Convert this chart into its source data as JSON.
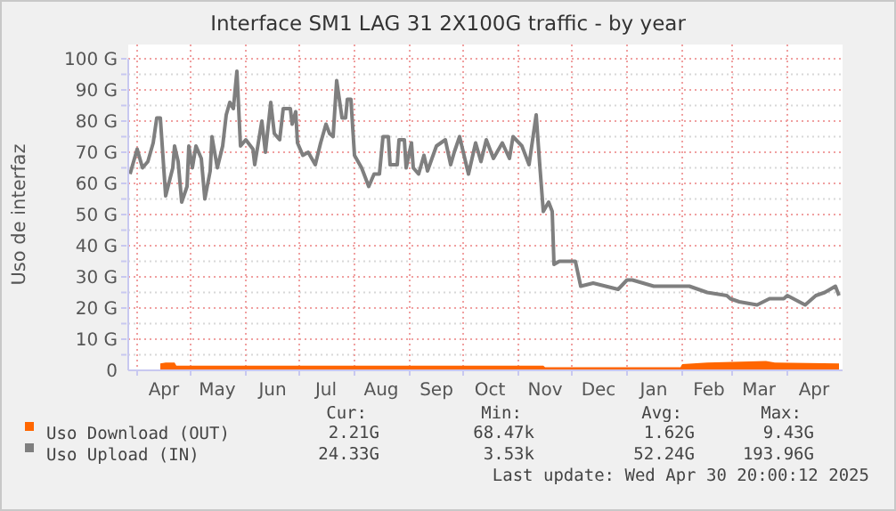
{
  "chart_data": {
    "type": "line",
    "title": "Interface SM1 LAG 31 2X100G traffic - by year",
    "ylabel": "Uso de interfaz",
    "xlim": [
      "2024-03-27",
      "2025-05-02"
    ],
    "xticks": [
      {
        "value": "2024-04-01",
        "label": null
      },
      {
        "value": "2024-04-16",
        "label": "Apr"
      },
      {
        "value": "2024-05-01",
        "label": null
      },
      {
        "value": "2024-05-16",
        "label": "May"
      },
      {
        "value": "2024-06-01",
        "label": null
      },
      {
        "value": "2024-06-16",
        "label": "Jun"
      },
      {
        "value": "2024-07-01",
        "label": null
      },
      {
        "value": "2024-07-16",
        "label": "Jul"
      },
      {
        "value": "2024-08-01",
        "label": null
      },
      {
        "value": "2024-08-16",
        "label": "Aug"
      },
      {
        "value": "2024-09-01",
        "label": null
      },
      {
        "value": "2024-09-16",
        "label": "Sep"
      },
      {
        "value": "2024-10-01",
        "label": null
      },
      {
        "value": "2024-10-16",
        "label": "Oct"
      },
      {
        "value": "2024-11-01",
        "label": null
      },
      {
        "value": "2024-11-16",
        "label": "Nov"
      },
      {
        "value": "2024-12-01",
        "label": null
      },
      {
        "value": "2024-12-16",
        "label": "Dec"
      },
      {
        "value": "2025-01-01",
        "label": null
      },
      {
        "value": "2025-01-16",
        "label": "Jan"
      },
      {
        "value": "2025-02-01",
        "label": null
      },
      {
        "value": "2025-02-16",
        "label": "Feb"
      },
      {
        "value": "2025-03-01",
        "label": null
      },
      {
        "value": "2025-03-16",
        "label": "Mar"
      },
      {
        "value": "2025-04-01",
        "label": null
      },
      {
        "value": "2025-04-16",
        "label": "Apr"
      }
    ],
    "ylim": [
      0,
      100
    ],
    "yticks": [
      0,
      {
        "value": 5,
        "label": null
      },
      {
        "value": 10,
        "label": "10 G"
      },
      {
        "value": 15,
        "label": null
      },
      {
        "value": 20,
        "label": "20 G"
      },
      {
        "value": 25,
        "label": null
      },
      {
        "value": 30,
        "label": "30 G"
      },
      {
        "value": 35,
        "label": null
      },
      {
        "value": 40,
        "label": "40 G"
      },
      {
        "value": 45,
        "label": null
      },
      {
        "value": 50,
        "label": "50 G"
      },
      {
        "value": 55,
        "label": null
      },
      {
        "value": 60,
        "label": "60 G"
      },
      {
        "value": 65,
        "label": null
      },
      {
        "value": 70,
        "label": "70 G"
      },
      {
        "value": 75,
        "label": null
      },
      {
        "value": 80,
        "label": "80 G"
      },
      {
        "value": 85,
        "label": null
      },
      {
        "value": 90,
        "label": "90 G"
      },
      {
        "value": 95,
        "label": null
      },
      {
        "value": 100,
        "label": "100 G"
      }
    ],
    "grid": true,
    "legend": "bottom",
    "series": [
      {
        "name": "Uso Download (OUT)",
        "type": "area",
        "color": "#ff6600",
        "x": [
          "2024-04-14",
          "2024-04-17",
          "2024-04-22",
          "2024-04-23",
          "2024-11-15",
          "2024-11-16",
          "2025-01-31",
          "2025-02-01",
          "2025-02-15",
          "2025-03-20",
          "2025-03-25",
          "2025-04-30"
        ],
        "values": [
          2.2,
          2.5,
          2.5,
          1.5,
          1.5,
          1.0,
          1.0,
          2.0,
          2.5,
          3.0,
          2.5,
          2.2
        ]
      },
      {
        "name": "Uso Upload (IN)",
        "type": "line",
        "color": "#7f7f7f",
        "x": [
          "2024-03-28",
          "2024-04-01",
          "2024-04-04",
          "2024-04-07",
          "2024-04-10",
          "2024-04-12",
          "2024-04-14",
          "2024-04-17",
          "2024-04-21",
          "2024-04-22",
          "2024-04-24",
          "2024-04-26",
          "2024-04-29",
          "2024-04-30",
          "2024-05-02",
          "2024-05-04",
          "2024-05-07",
          "2024-05-09",
          "2024-05-12",
          "2024-05-13",
          "2024-05-16",
          "2024-05-19",
          "2024-05-21",
          "2024-05-23",
          "2024-05-25",
          "2024-05-27",
          "2024-05-29",
          "2024-06-01",
          "2024-06-05",
          "2024-06-06",
          "2024-06-10",
          "2024-06-12",
          "2024-06-15",
          "2024-06-17",
          "2024-06-20",
          "2024-06-22",
          "2024-06-26",
          "2024-06-27",
          "2024-06-29",
          "2024-06-30",
          "2024-07-03",
          "2024-07-06",
          "2024-07-10",
          "2024-07-13",
          "2024-07-16",
          "2024-07-18",
          "2024-07-20",
          "2024-07-22",
          "2024-07-25",
          "2024-07-27",
          "2024-07-28",
          "2024-07-30",
          "2024-08-01",
          "2024-08-05",
          "2024-08-09",
          "2024-08-12",
          "2024-08-15",
          "2024-08-17",
          "2024-08-20",
          "2024-08-21",
          "2024-08-25",
          "2024-08-26",
          "2024-08-29",
          "2024-08-30",
          "2024-09-02",
          "2024-09-03",
          "2024-09-06",
          "2024-09-09",
          "2024-09-11",
          "2024-09-16",
          "2024-09-21",
          "2024-09-24",
          "2024-09-26",
          "2024-09-29",
          "2024-10-04",
          "2024-10-08",
          "2024-10-11",
          "2024-10-14",
          "2024-10-18",
          "2024-10-23",
          "2024-10-27",
          "2024-10-29",
          "2024-11-03",
          "2024-11-07",
          "2024-11-11",
          "2024-11-13",
          "2024-11-15",
          "2024-11-18",
          "2024-11-20",
          "2024-11-21",
          "2024-11-24",
          "2024-11-27",
          "2024-12-03",
          "2024-12-06",
          "2024-12-13",
          "2024-12-27",
          "2025-01-01",
          "2025-01-04",
          "2025-01-16",
          "2025-01-26",
          "2025-02-05",
          "2025-02-15",
          "2025-02-26",
          "2025-02-28",
          "2025-03-05",
          "2025-03-15",
          "2025-03-22",
          "2025-03-30",
          "2025-04-01",
          "2025-04-11",
          "2025-04-17",
          "2025-04-22",
          "2025-04-28",
          "2025-04-30"
        ],
        "values": [
          63,
          71,
          65,
          67,
          73,
          81,
          81,
          56,
          65,
          72,
          67,
          54,
          59,
          72,
          65,
          72,
          68,
          55,
          64,
          75,
          65,
          72,
          82,
          86,
          84,
          96,
          72,
          74,
          71,
          66,
          80,
          70,
          86,
          76,
          74,
          84,
          84,
          79,
          83,
          73,
          69,
          70,
          66,
          73,
          79,
          76,
          75,
          93,
          81,
          81,
          87,
          87,
          69,
          65,
          59,
          63,
          63,
          75,
          75,
          66,
          66,
          74,
          74,
          65,
          73,
          65,
          63,
          69,
          64,
          72,
          74,
          66,
          70,
          75,
          63,
          73,
          67,
          74,
          68,
          73,
          68,
          75,
          72,
          66,
          82,
          66,
          51,
          54,
          51,
          34,
          35,
          35,
          35,
          27,
          28,
          26,
          29,
          29,
          27,
          27,
          27,
          25,
          24,
          23,
          22,
          21,
          23,
          23,
          24,
          21,
          24,
          25,
          27,
          24
        ]
      }
    ],
    "annotations": [
      "Cur:",
      "Min:",
      "Avg:",
      "Max:",
      "2.21G",
      "68.47k",
      "1.62G",
      "9.43G",
      "24.33G",
      "3.53k",
      "52.24G",
      "193.96G",
      "Last update: Wed Apr 30 20:00:12 2025"
    ]
  }
}
